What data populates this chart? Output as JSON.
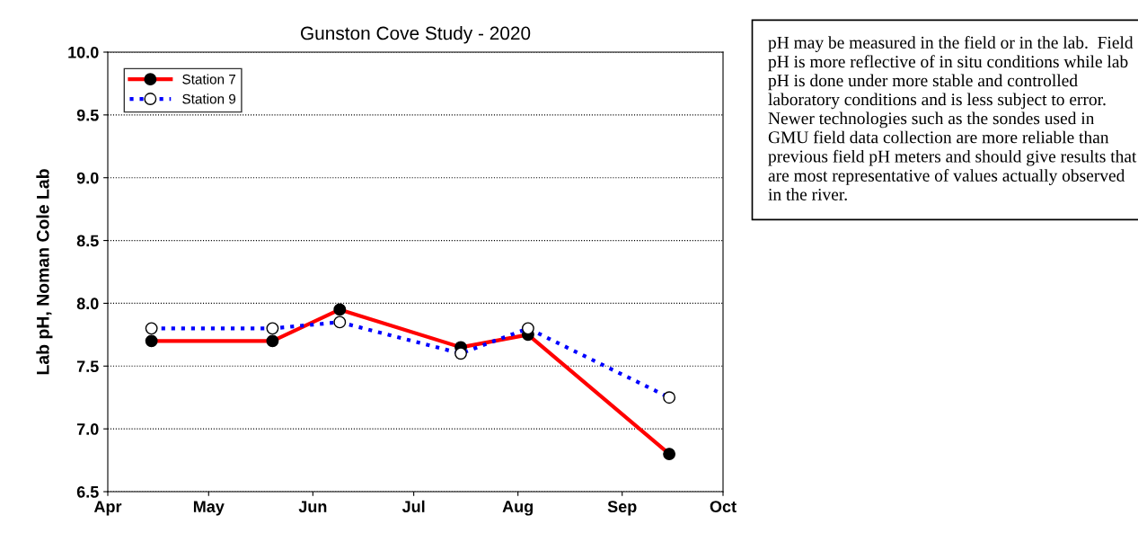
{
  "chart_data": {
    "type": "line",
    "title": "Gunston Cove Study - 2020",
    "ylabel": "Lab pH, Noman Cole Lab",
    "x": [
      "2020-04-14",
      "2020-05-20",
      "2020-06-09",
      "2020-07-15",
      "2020-08-04",
      "2020-09-15"
    ],
    "series": [
      {
        "name": "Station 7",
        "color": "#ff0000",
        "line_style": "solid",
        "values": [
          7.7,
          7.7,
          7.95,
          7.65,
          7.75,
          6.8
        ]
      },
      {
        "name": "Station 9",
        "color": "#0000ff",
        "line_style": "dotted",
        "values": [
          7.8,
          7.8,
          7.85,
          7.6,
          7.8,
          7.25
        ]
      }
    ],
    "xlim": [
      "2020-04-01",
      "2020-10-01"
    ],
    "xticks": [
      {
        "value": "2020-04-01",
        "label": "Apr"
      },
      {
        "value": "2020-05-01",
        "label": "May"
      },
      {
        "value": "2020-06-01",
        "label": "Jun"
      },
      {
        "value": "2020-07-01",
        "label": "Jul"
      },
      {
        "value": "2020-08-01",
        "label": "Aug"
      },
      {
        "value": "2020-09-01",
        "label": "Sep"
      },
      {
        "value": "2020-10-01",
        "label": "Oct"
      }
    ],
    "ylim": [
      6.5,
      10.0
    ],
    "yticks": [
      {
        "value": 6.5,
        "label": "6.5"
      },
      {
        "value": 7.0,
        "label": "7.0"
      },
      {
        "value": 7.5,
        "label": "7.5"
      },
      {
        "value": 8.0,
        "label": "8.0"
      },
      {
        "value": 8.5,
        "label": "8.5"
      },
      {
        "value": 9.0,
        "label": "9.0"
      },
      {
        "value": 9.5,
        "label": "9.5"
      },
      {
        "value": 10.0,
        "label": "10.0"
      }
    ],
    "grid": "y",
    "legend": "top left",
    "marker": "circle",
    "annotations": [
      "pH may be measured in the field or in the lab.  Field pH is more reflective of in situ conditions while lab pH is done under more stable and controlled laboratory conditions and is less subject to error. Newer technologies such as the sondes used in GMU field data collection are more reliable than previous field pH meters and should give results that are most representative of values actually observed in the river."
    ]
  }
}
